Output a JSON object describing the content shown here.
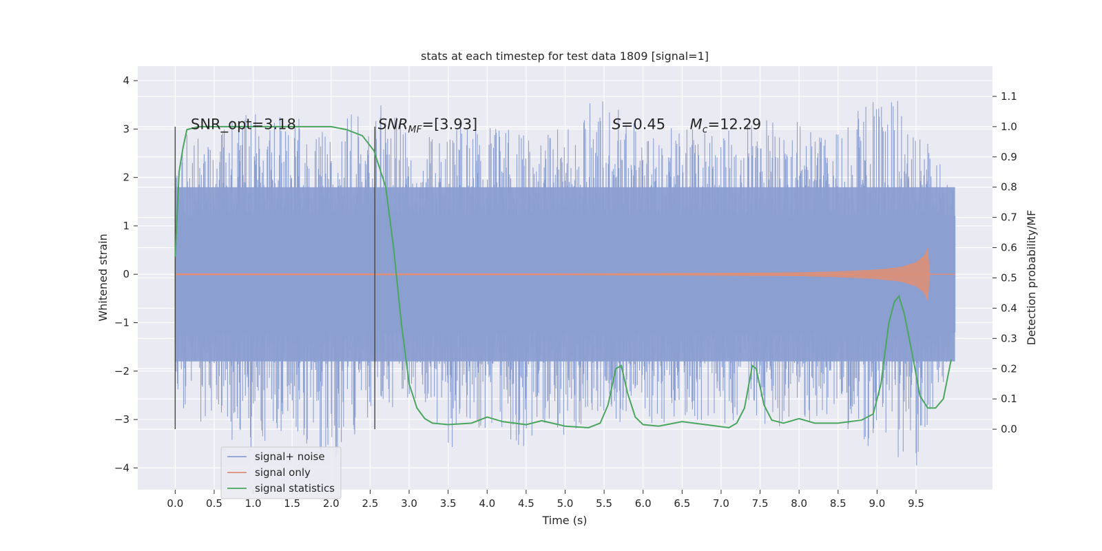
{
  "chart_data": {
    "type": "line",
    "title": "stats at each timestep for test data 1809 [signal=1]",
    "xlabel": "Time (s)",
    "ylabel_left": "Whitened strain",
    "ylabel_right": "Detection probability/MF",
    "xlim": [
      -0.48,
      10.48
    ],
    "ylim_left": [
      -4.45,
      4.3
    ],
    "ylim_right": [
      -0.2,
      1.2
    ],
    "xticks": [
      0.0,
      0.5,
      1.0,
      1.5,
      2.0,
      2.5,
      3.0,
      3.5,
      4.0,
      4.5,
      5.0,
      5.5,
      6.0,
      6.5,
      7.0,
      7.5,
      8.0,
      8.5,
      9.0,
      9.5
    ],
    "xtick_labels": [
      "0.0",
      "0.5",
      "1.0",
      "1.5",
      "2.0",
      "2.5",
      "3.0",
      "3.5",
      "4.0",
      "4.5",
      "5.0",
      "5.5",
      "6.0",
      "6.5",
      "7.0",
      "7.5",
      "8.0",
      "8.5",
      "9.0",
      "9.5"
    ],
    "yticks_left": [
      -4,
      -3,
      -2,
      -1,
      0,
      1,
      2,
      3,
      4
    ],
    "ytick_labels_left": [
      "−4",
      "−3",
      "−2",
      "−1",
      "0",
      "1",
      "2",
      "3",
      "4"
    ],
    "yticks_right": [
      0.0,
      0.1,
      0.2,
      0.3,
      0.4,
      0.5,
      0.6,
      0.7,
      0.8,
      0.9,
      1.0,
      1.1
    ],
    "ytick_labels_right": [
      "0.0",
      "0.1",
      "0.2",
      "0.3",
      "0.4",
      "0.5",
      "0.6",
      "0.7",
      "0.8",
      "0.9",
      "1.0",
      "1.1"
    ],
    "grid": true,
    "legend_placement": "lower-left",
    "series": [
      {
        "name": "signal+ noise",
        "color": "#8c9fd1",
        "axis": "left",
        "envelope": {
          "x": [
            0.0,
            0.5,
            1.0,
            1.5,
            2.0,
            2.5,
            3.0,
            3.5,
            4.0,
            4.5,
            5.0,
            5.5,
            6.0,
            6.5,
            7.0,
            7.5,
            8.0,
            8.5,
            9.0,
            9.5,
            10.0
          ],
          "upper": [
            3.0,
            3.0,
            3.4,
            3.3,
            3.2,
            3.7,
            3.1,
            3.0,
            3.1,
            2.9,
            3.1,
            3.9,
            3.0,
            3.1,
            3.0,
            3.3,
            3.2,
            3.0,
            3.8,
            3.4,
            1.6
          ],
          "lower": [
            -3.2,
            -3.2,
            -3.7,
            -3.2,
            -4.0,
            -3.0,
            -2.6,
            -3.6,
            -3.4,
            -3.6,
            -3.4,
            -3.0,
            -3.2,
            -3.0,
            -3.1,
            -3.1,
            -3.2,
            -3.0,
            -3.8,
            -4.0,
            -1.5
          ]
        }
      },
      {
        "name": "signal only",
        "color": "#dd8f77",
        "axis": "left",
        "x": [
          0.0,
          5.0,
          7.0,
          8.0,
          8.5,
          9.0,
          9.3,
          9.5,
          9.6,
          9.65,
          9.68,
          10.0
        ],
        "amplitude": [
          0.02,
          0.02,
          0.03,
          0.04,
          0.06,
          0.1,
          0.15,
          0.25,
          0.38,
          0.55,
          0.0,
          0.0
        ]
      },
      {
        "name": "signal statistics",
        "color": "#4aa55d",
        "axis": "right",
        "x": [
          0.0,
          0.05,
          0.1,
          0.15,
          0.3,
          0.5,
          1.0,
          1.5,
          2.0,
          2.2,
          2.4,
          2.55,
          2.7,
          2.8,
          2.9,
          3.0,
          3.1,
          3.2,
          3.3,
          3.5,
          3.8,
          4.0,
          4.2,
          4.5,
          4.7,
          5.0,
          5.3,
          5.45,
          5.55,
          5.65,
          5.72,
          5.8,
          5.9,
          6.0,
          6.2,
          6.5,
          6.8,
          7.1,
          7.2,
          7.3,
          7.4,
          7.45,
          7.55,
          7.65,
          7.8,
          8.0,
          8.2,
          8.5,
          8.8,
          8.95,
          9.05,
          9.15,
          9.22,
          9.28,
          9.35,
          9.45,
          9.55,
          9.65,
          9.75,
          9.85,
          9.95
        ],
        "y": [
          0.57,
          0.85,
          0.93,
          0.99,
          1.0,
          1.0,
          1.0,
          1.0,
          1.0,
          0.99,
          0.97,
          0.92,
          0.8,
          0.6,
          0.35,
          0.15,
          0.07,
          0.035,
          0.02,
          0.015,
          0.02,
          0.04,
          0.025,
          0.015,
          0.028,
          0.01,
          0.005,
          0.02,
          0.08,
          0.2,
          0.21,
          0.12,
          0.04,
          0.015,
          0.01,
          0.025,
          0.015,
          0.005,
          0.02,
          0.07,
          0.21,
          0.2,
          0.08,
          0.03,
          0.02,
          0.035,
          0.02,
          0.02,
          0.03,
          0.05,
          0.15,
          0.35,
          0.42,
          0.44,
          0.38,
          0.25,
          0.11,
          0.07,
          0.07,
          0.1,
          0.23
        ]
      }
    ],
    "vlines": [
      0.0,
      2.56
    ],
    "annotations": [
      {
        "label": "SNR_opt=3.18",
        "x": 0.2,
        "y_left": 3.0
      },
      {
        "label": "SNR",
        "sub": "MF",
        "suffix": "=[3.93]",
        "x": 2.6,
        "y_left": 3.0
      },
      {
        "label": "S",
        "suffix": "=0.45",
        "x": 5.6,
        "y_left": 3.0
      },
      {
        "label": "M",
        "sub": "c",
        "suffix": "=12.29",
        "x": 6.6,
        "y_left": 3.0
      }
    ]
  }
}
